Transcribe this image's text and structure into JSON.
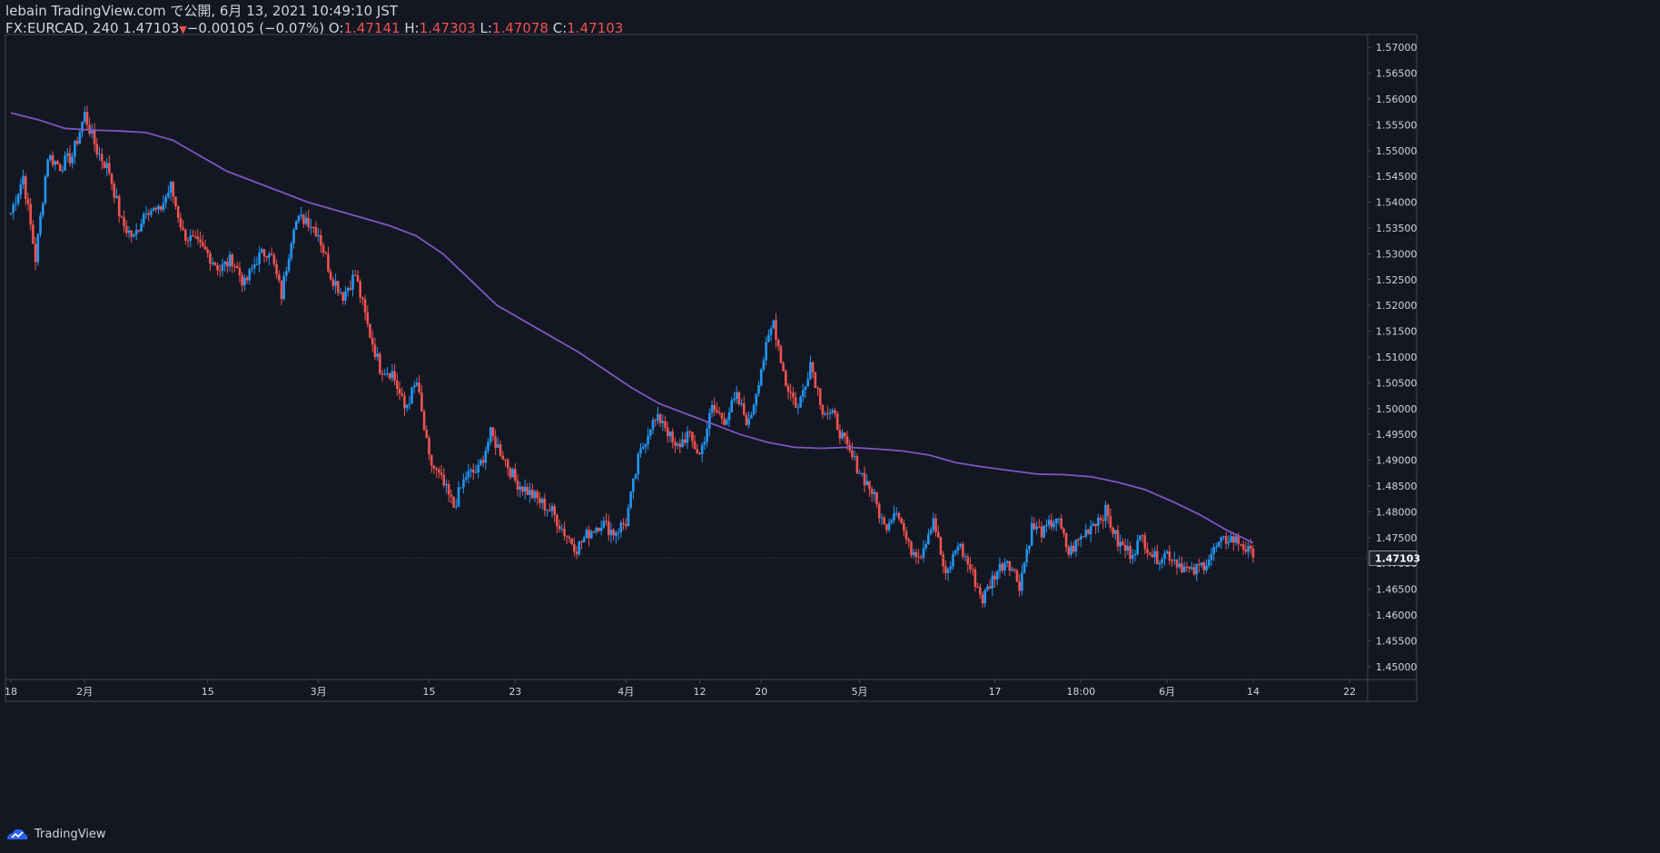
{
  "header": {
    "published_line": "lebain TradingView.com で公開, 6月 13, 2021 10:49:10 JST",
    "symbol": "FX:EURCAD, 240",
    "last_price": "1.47103",
    "change": "−0.00105 (−0.07%)",
    "ohlc": {
      "o_label": "O:",
      "o_value": "1.47141",
      "h_label": "H:",
      "h_value": "1.47303",
      "l_label": "L:",
      "l_value": "1.47078",
      "c_label": "C:",
      "c_value": "1.47103"
    }
  },
  "footer": {
    "brand": "TradingView"
  },
  "colors": {
    "background": "#131722",
    "up": "#2196f3",
    "down": "#ef5350",
    "ma": "#7e57c2",
    "axis_text": "#d1d4dc",
    "border": "#434651"
  },
  "chart_data": {
    "type": "line",
    "subtype": "candlestick",
    "title": "",
    "xlabel": "",
    "ylabel": "",
    "ylim": [
      1.4475,
      1.5725
    ],
    "x_ticks": [
      "18",
      "2月",
      "15",
      "3月",
      "15",
      "23",
      "4月",
      "12",
      "20",
      "5月",
      "17",
      "18:00",
      "6月",
      "14",
      "22"
    ],
    "y_ticks": [
      "1.57000",
      "1.56500",
      "1.56000",
      "1.55500",
      "1.55000",
      "1.54500",
      "1.54000",
      "1.53500",
      "1.53000",
      "1.52500",
      "1.52000",
      "1.51500",
      "1.51000",
      "1.50500",
      "1.50000",
      "1.49500",
      "1.49000",
      "1.48500",
      "1.48000",
      "1.47500",
      "1.47000",
      "1.46500",
      "1.46000",
      "1.45500",
      "1.45000"
    ],
    "last_price_label": "1.47103",
    "last_price": 1.47103,
    "series": [
      {
        "name": "",
        "kind": "price",
        "points": [
          [
            "18",
            1.538
          ],
          [
            "",
            1.545
          ],
          [
            "",
            1.529
          ],
          [
            "",
            1.549
          ],
          [
            "",
            1.547
          ],
          [
            "",
            1.549
          ],
          [
            "2月",
            1.557
          ],
          [
            "",
            1.55
          ],
          [
            "",
            1.546
          ],
          [
            "",
            1.536
          ],
          [
            "",
            1.533
          ],
          [
            "",
            1.539
          ],
          [
            "",
            1.538
          ],
          [
            "",
            1.543
          ],
          [
            "",
            1.534
          ],
          [
            "",
            1.532
          ],
          [
            "15",
            1.53
          ],
          [
            "",
            1.527
          ],
          [
            "",
            1.529
          ],
          [
            "",
            1.524
          ],
          [
            "",
            1.529
          ],
          [
            "",
            1.531
          ],
          [
            "",
            1.522
          ],
          [
            "",
            1.536
          ],
          [
            "",
            1.537
          ],
          [
            "3月",
            1.534
          ],
          [
            "",
            1.526
          ],
          [
            "",
            1.522
          ],
          [
            "",
            1.526
          ],
          [
            "",
            1.516
          ],
          [
            "",
            1.508
          ],
          [
            "",
            1.507
          ],
          [
            "",
            1.5
          ],
          [
            "",
            1.505
          ],
          [
            "15",
            1.49
          ],
          [
            "",
            1.486
          ],
          [
            "",
            1.481
          ],
          [
            "",
            1.487
          ],
          [
            "",
            1.488
          ],
          [
            "",
            1.495
          ],
          [
            "",
            1.491
          ],
          [
            "23",
            1.486
          ],
          [
            "",
            1.484
          ],
          [
            "",
            1.482
          ],
          [
            "",
            1.48
          ],
          [
            "",
            1.476
          ],
          [
            "",
            1.473
          ],
          [
            "",
            1.476
          ],
          [
            "",
            1.478
          ],
          [
            "",
            1.476
          ],
          [
            "4月",
            1.478
          ],
          [
            "",
            1.49
          ],
          [
            "",
            1.497
          ],
          [
            "",
            1.498
          ],
          [
            "",
            1.492
          ],
          [
            "",
            1.495
          ],
          [
            "12",
            1.491
          ],
          [
            "",
            1.5
          ],
          [
            "",
            1.498
          ],
          [
            "",
            1.502
          ],
          [
            "",
            1.497
          ],
          [
            "20",
            1.508
          ],
          [
            "",
            1.517
          ],
          [
            "",
            1.505
          ],
          [
            "",
            1.5
          ],
          [
            "",
            1.509
          ],
          [
            "",
            1.5
          ],
          [
            "",
            1.498
          ],
          [
            "",
            1.492
          ],
          [
            "5月",
            1.488
          ],
          [
            "",
            1.484
          ],
          [
            "",
            1.477
          ],
          [
            "",
            1.481
          ],
          [
            "",
            1.473
          ],
          [
            "",
            1.472
          ],
          [
            "",
            1.479
          ],
          [
            "",
            1.467
          ],
          [
            "",
            1.474
          ],
          [
            "",
            1.469
          ],
          [
            "",
            1.463
          ],
          [
            "17",
            1.468
          ],
          [
            "",
            1.471
          ],
          [
            "",
            1.466
          ],
          [
            "",
            1.477
          ],
          [
            "",
            1.476
          ],
          [
            "",
            1.479
          ],
          [
            "",
            1.472
          ],
          [
            "18:00",
            1.475
          ],
          [
            "",
            1.478
          ],
          [
            "",
            1.48
          ],
          [
            "",
            1.474
          ],
          [
            "",
            1.472
          ],
          [
            "",
            1.475
          ],
          [
            "",
            1.471
          ],
          [
            "6月",
            1.472
          ],
          [
            "",
            1.47
          ],
          [
            "",
            1.468
          ],
          [
            "",
            1.47
          ],
          [
            "",
            1.473
          ],
          [
            "",
            1.475
          ],
          [
            "",
            1.474
          ],
          [
            "14",
            1.471
          ]
        ]
      },
      {
        "name": "",
        "kind": "moving-average",
        "points": [
          [
            "18",
            1.5573
          ],
          [
            "",
            1.556
          ],
          [
            "",
            1.5543
          ],
          [
            "",
            1.554
          ],
          [
            "2月",
            1.5538
          ],
          [
            "",
            1.5535
          ],
          [
            "",
            1.552
          ],
          [
            "",
            1.549
          ],
          [
            "",
            1.546
          ],
          [
            "15",
            1.544
          ],
          [
            "",
            1.542
          ],
          [
            "",
            1.54
          ],
          [
            "",
            1.5385
          ],
          [
            "3月",
            1.537
          ],
          [
            "",
            1.5355
          ],
          [
            "",
            1.5335
          ],
          [
            "",
            1.53
          ],
          [
            "15",
            1.525
          ],
          [
            "",
            1.52
          ],
          [
            "",
            1.517
          ],
          [
            "23",
            1.514
          ],
          [
            "",
            1.511
          ],
          [
            "",
            1.5075
          ],
          [
            "4月",
            1.504
          ],
          [
            "",
            1.501
          ],
          [
            "",
            1.499
          ],
          [
            "12",
            1.497
          ],
          [
            "",
            1.495
          ],
          [
            "",
            1.4935
          ],
          [
            "20",
            1.4925
          ],
          [
            "",
            1.4923
          ],
          [
            "",
            1.4925
          ],
          [
            "",
            1.4922
          ],
          [
            "5月",
            1.4918
          ],
          [
            "",
            1.491
          ],
          [
            "",
            1.4895
          ],
          [
            "",
            1.4887
          ],
          [
            "17",
            1.488
          ],
          [
            "",
            1.4873
          ],
          [
            "",
            1.4872
          ],
          [
            "18:00",
            1.4868
          ],
          [
            "",
            1.4857
          ],
          [
            "",
            1.4843
          ],
          [
            "6月",
            1.482
          ],
          [
            "",
            1.4795
          ],
          [
            "",
            1.4765
          ],
          [
            "14",
            1.474
          ]
        ]
      }
    ],
    "grid": false,
    "legend": "none"
  }
}
